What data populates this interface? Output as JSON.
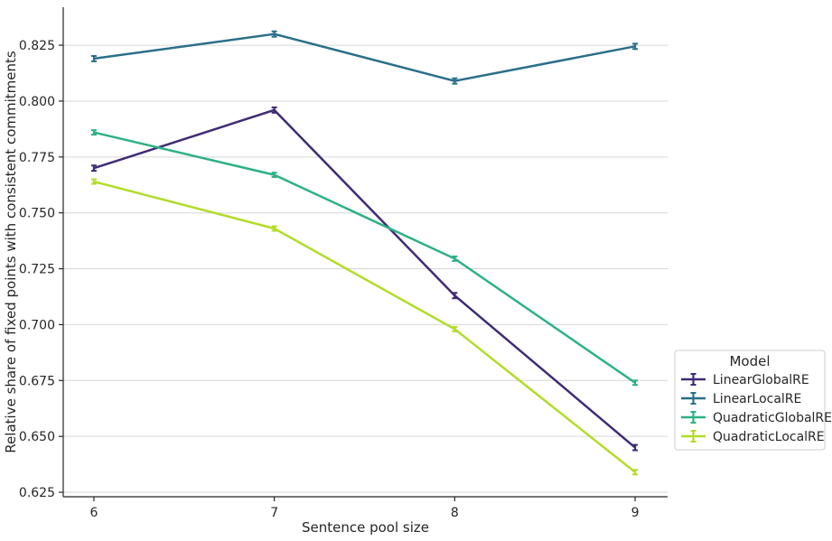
{
  "chart_data": {
    "type": "line",
    "title": "",
    "xlabel": "Sentence pool size",
    "ylabel": "Relative share of fixed points with consistent commitments",
    "x": [
      6,
      7,
      8,
      9
    ],
    "x_tick_labels": [
      "6",
      "7",
      "8",
      "9"
    ],
    "xlim": [
      5.83,
      9.18
    ],
    "ylim": [
      0.623,
      0.842
    ],
    "y_ticks": [
      0.625,
      0.65,
      0.675,
      0.7,
      0.725,
      0.75,
      0.775,
      0.8,
      0.825
    ],
    "y_tick_labels": [
      "0.625",
      "0.650",
      "0.675",
      "0.700",
      "0.725",
      "0.750",
      "0.775",
      "0.800",
      "0.825"
    ],
    "grid": "horizontal",
    "legend": {
      "title": "Model",
      "placement": "right"
    },
    "series": [
      {
        "name": "LinearGlobalRE",
        "color": "#3f2b75",
        "values": [
          0.77,
          0.796,
          0.713,
          0.645
        ],
        "error": [
          0.0012,
          0.0012,
          0.0012,
          0.0012
        ]
      },
      {
        "name": "LinearLocalRE",
        "color": "#2a6f89",
        "values": [
          0.819,
          0.83,
          0.809,
          0.8245
        ],
        "error": [
          0.0012,
          0.0012,
          0.0012,
          0.0012
        ]
      },
      {
        "name": "QuadraticGlobalRE",
        "color": "#2db185",
        "values": [
          0.786,
          0.767,
          0.7295,
          0.674
        ],
        "error": [
          0.001,
          0.001,
          0.001,
          0.001
        ]
      },
      {
        "name": "QuadraticLocalRE",
        "color": "#b2dc2a",
        "values": [
          0.764,
          0.743,
          0.698,
          0.634
        ],
        "error": [
          0.001,
          0.001,
          0.001,
          0.001
        ]
      }
    ]
  }
}
